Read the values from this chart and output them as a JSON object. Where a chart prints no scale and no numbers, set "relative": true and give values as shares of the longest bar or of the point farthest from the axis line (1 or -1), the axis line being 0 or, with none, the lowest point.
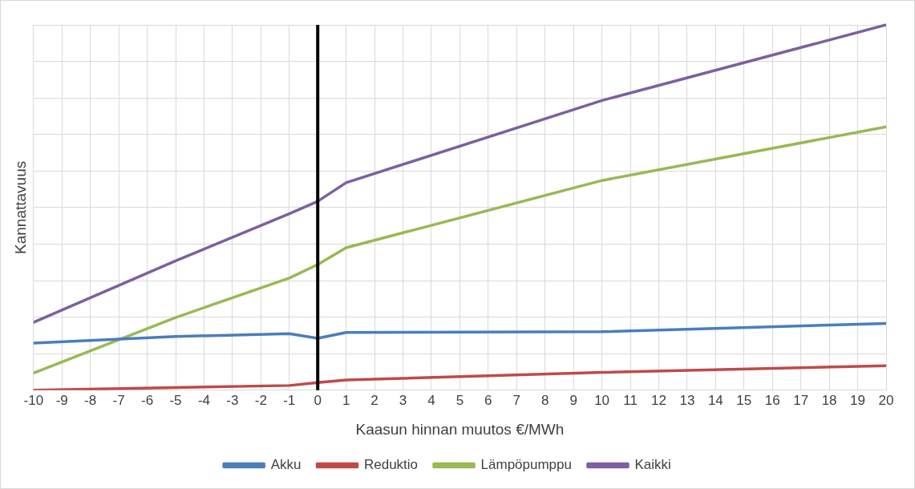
{
  "chart_data": {
    "type": "line",
    "xlabel": "Kaasun hinnan muutos €/MWh",
    "ylabel": "Kannattavuus",
    "relative": true,
    "xlim": [
      -10,
      20
    ],
    "xticks": [
      -10,
      -9,
      -8,
      -7,
      -6,
      -5,
      -4,
      -3,
      -2,
      -1,
      0,
      1,
      2,
      3,
      4,
      5,
      6,
      7,
      8,
      9,
      10,
      11,
      12,
      13,
      14,
      15,
      16,
      17,
      18,
      19,
      20
    ],
    "grid": true,
    "legend": "bottom",
    "marker": "none",
    "line_style": "solid",
    "ref_lines": [
      {
        "axis": "x",
        "value": 0,
        "color": "#000000"
      }
    ],
    "series": [
      {
        "name": "Akku",
        "color": "#4a7ebb",
        "x": [
          -10,
          -5,
          -1,
          0,
          1,
          10,
          20
        ],
        "values": [
          0.129,
          0.147,
          0.155,
          0.142,
          0.158,
          0.16,
          0.183
        ]
      },
      {
        "name": "Reduktio",
        "color": "#be4b48",
        "x": [
          -10,
          -1,
          0,
          1,
          10,
          20
        ],
        "values": [
          0,
          0.013,
          0.021,
          0.028,
          0.049,
          0.067
        ]
      },
      {
        "name": "Lämpöpumppu",
        "color": "#98b954",
        "x": [
          -10,
          -5,
          -1,
          0,
          1,
          10,
          20
        ],
        "values": [
          0.047,
          0.199,
          0.307,
          0.344,
          0.39,
          0.574,
          0.721
        ]
      },
      {
        "name": "Kaikki",
        "color": "#7d60a0",
        "x": [
          -10,
          -5,
          -1,
          0,
          1,
          10,
          20
        ],
        "values": [
          0.186,
          0.354,
          0.483,
          0.517,
          0.568,
          0.793,
          1
        ]
      }
    ]
  }
}
